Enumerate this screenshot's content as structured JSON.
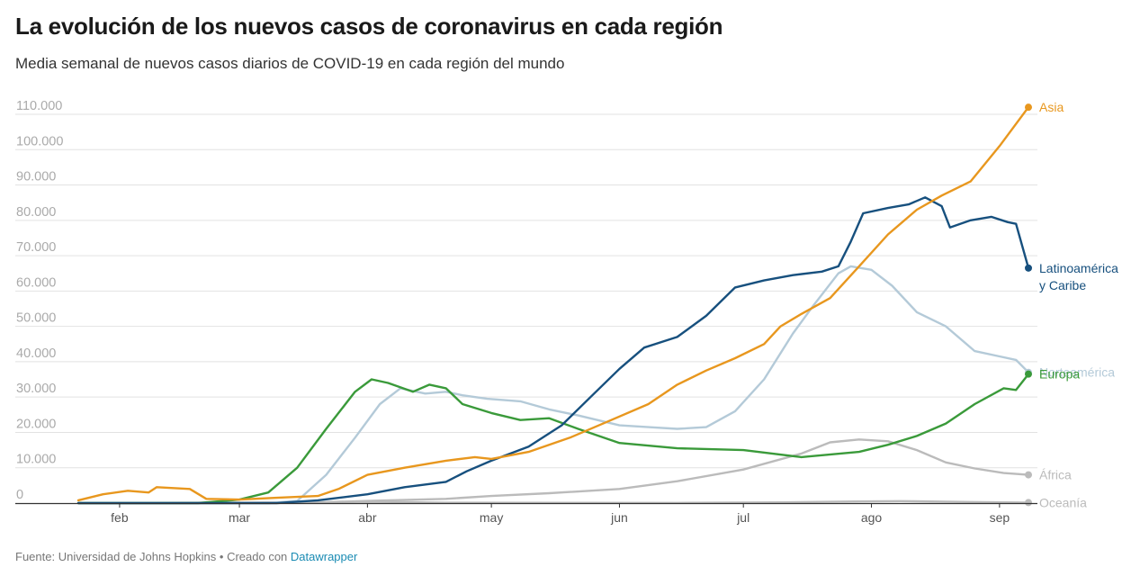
{
  "title": "La evolución de los nuevos casos de coronavirus en cada región",
  "subtitle": "Media semanal de nuevos casos diarios de COVID-19 en cada región del mundo",
  "footer": {
    "source": "Fuente: Universidad de Johns Hopkins • Creado con ",
    "tool": "Datawrapper"
  },
  "chart_data": {
    "type": "line",
    "title": "La evolución de los nuevos casos de coronavirus en cada región",
    "subtitle": "Media semanal de nuevos casos diarios de COVID-19 en cada región del mundo",
    "x_type": "date",
    "x_range": [
      "2020-01-22",
      "2020-09-08"
    ],
    "x_ticks": [
      {
        "date": "2020-02-01",
        "label": "feb"
      },
      {
        "date": "2020-03-01",
        "label": "mar"
      },
      {
        "date": "2020-04-01",
        "label": "abr"
      },
      {
        "date": "2020-05-01",
        "label": "may"
      },
      {
        "date": "2020-06-01",
        "label": "jun"
      },
      {
        "date": "2020-07-01",
        "label": "jul"
      },
      {
        "date": "2020-08-01",
        "label": "ago"
      },
      {
        "date": "2020-09-01",
        "label": "sep"
      }
    ],
    "ylim": [
      0,
      110000
    ],
    "y_ticks": [
      {
        "value": 0,
        "label": "0"
      },
      {
        "value": 10000,
        "label": "10.000"
      },
      {
        "value": 20000,
        "label": "20.000"
      },
      {
        "value": 30000,
        "label": "30.000"
      },
      {
        "value": 40000,
        "label": "40.000"
      },
      {
        "value": 50000,
        "label": "50.000"
      },
      {
        "value": 60000,
        "label": "60.000"
      },
      {
        "value": 70000,
        "label": "70.000"
      },
      {
        "value": 80000,
        "label": "80.000"
      },
      {
        "value": 90000,
        "label": "90.000"
      },
      {
        "value": 100000,
        "label": "100.000"
      },
      {
        "value": 110000,
        "label": "110.000"
      }
    ],
    "grid": "horizontal",
    "legend": "direct labels at line ends",
    "series": [
      {
        "name": "Oceanía",
        "label_lines": [
          "Oceanía"
        ],
        "color": "#bbbbbb",
        "points": [
          [
            "2020-01-22",
            0
          ],
          [
            "2020-03-15",
            100
          ],
          [
            "2020-04-01",
            400
          ],
          [
            "2020-04-20",
            100
          ],
          [
            "2020-06-15",
            50
          ],
          [
            "2020-07-10",
            200
          ],
          [
            "2020-07-28",
            450
          ],
          [
            "2020-08-08",
            550
          ],
          [
            "2020-08-25",
            300
          ],
          [
            "2020-09-08",
            150
          ]
        ]
      },
      {
        "name": "África",
        "label_lines": [
          "África"
        ],
        "color": "#bbbbbb",
        "points": [
          [
            "2020-01-22",
            0
          ],
          [
            "2020-03-20",
            200
          ],
          [
            "2020-04-01",
            600
          ],
          [
            "2020-04-20",
            1200
          ],
          [
            "2020-05-01",
            2000
          ],
          [
            "2020-05-15",
            2800
          ],
          [
            "2020-06-01",
            4000
          ],
          [
            "2020-06-15",
            6200
          ],
          [
            "2020-07-01",
            9500
          ],
          [
            "2020-07-15",
            14000
          ],
          [
            "2020-07-22",
            17200
          ],
          [
            "2020-07-29",
            18000
          ],
          [
            "2020-08-05",
            17500
          ],
          [
            "2020-08-12",
            15000
          ],
          [
            "2020-08-19",
            11500
          ],
          [
            "2020-08-26",
            9800
          ],
          [
            "2020-09-02",
            8500
          ],
          [
            "2020-09-08",
            8000
          ]
        ]
      },
      {
        "name": "Norteamérica",
        "label_lines": [
          "Norteamérica"
        ],
        "color": "#b4cad8",
        "points": [
          [
            "2020-01-22",
            0
          ],
          [
            "2020-03-08",
            0
          ],
          [
            "2020-03-15",
            600
          ],
          [
            "2020-03-22",
            8000
          ],
          [
            "2020-03-29",
            18500
          ],
          [
            "2020-04-04",
            28000
          ],
          [
            "2020-04-09",
            32500
          ],
          [
            "2020-04-15",
            31000
          ],
          [
            "2020-04-20",
            31500
          ],
          [
            "2020-04-24",
            30500
          ],
          [
            "2020-04-30",
            29500
          ],
          [
            "2020-05-08",
            28800
          ],
          [
            "2020-05-15",
            26500
          ],
          [
            "2020-05-22",
            24800
          ],
          [
            "2020-06-01",
            22000
          ],
          [
            "2020-06-08",
            21500
          ],
          [
            "2020-06-15",
            21000
          ],
          [
            "2020-06-22",
            21500
          ],
          [
            "2020-06-29",
            26000
          ],
          [
            "2020-07-06",
            35000
          ],
          [
            "2020-07-13",
            48000
          ],
          [
            "2020-07-18",
            56000
          ],
          [
            "2020-07-24",
            65000
          ],
          [
            "2020-07-27",
            67000
          ],
          [
            "2020-08-01",
            66000
          ],
          [
            "2020-08-06",
            61500
          ],
          [
            "2020-08-12",
            54000
          ],
          [
            "2020-08-19",
            50000
          ],
          [
            "2020-08-26",
            43000
          ],
          [
            "2020-09-01",
            41500
          ],
          [
            "2020-09-05",
            40500
          ],
          [
            "2020-09-08",
            37000
          ]
        ]
      },
      {
        "name": "Europa",
        "label_lines": [
          "Europa"
        ],
        "color": "#3a9a3a",
        "points": [
          [
            "2020-01-22",
            0
          ],
          [
            "2020-02-20",
            0
          ],
          [
            "2020-03-01",
            1000
          ],
          [
            "2020-03-08",
            3000
          ],
          [
            "2020-03-15",
            10000
          ],
          [
            "2020-03-22",
            21000
          ],
          [
            "2020-03-29",
            31500
          ],
          [
            "2020-04-02",
            35000
          ],
          [
            "2020-04-06",
            34000
          ],
          [
            "2020-04-12",
            31500
          ],
          [
            "2020-04-16",
            33500
          ],
          [
            "2020-04-20",
            32500
          ],
          [
            "2020-04-24",
            28000
          ],
          [
            "2020-05-01",
            25500
          ],
          [
            "2020-05-08",
            23500
          ],
          [
            "2020-05-15",
            24000
          ],
          [
            "2020-05-22",
            21000
          ],
          [
            "2020-06-01",
            17000
          ],
          [
            "2020-06-15",
            15500
          ],
          [
            "2020-07-01",
            15000
          ],
          [
            "2020-07-15",
            13000
          ],
          [
            "2020-07-29",
            14500
          ],
          [
            "2020-08-05",
            16500
          ],
          [
            "2020-08-12",
            19000
          ],
          [
            "2020-08-19",
            22500
          ],
          [
            "2020-08-26",
            28000
          ],
          [
            "2020-09-02",
            32500
          ],
          [
            "2020-09-05",
            32000
          ],
          [
            "2020-09-08",
            36500
          ]
        ]
      },
      {
        "name": "Latinoamérica y Caribe",
        "label_lines": [
          "Latinoamérica",
          "y Caribe"
        ],
        "color": "#17507e",
        "points": [
          [
            "2020-01-22",
            0
          ],
          [
            "2020-03-10",
            0
          ],
          [
            "2020-03-20",
            800
          ],
          [
            "2020-04-01",
            2500
          ],
          [
            "2020-04-10",
            4500
          ],
          [
            "2020-04-20",
            6000
          ],
          [
            "2020-04-25",
            9000
          ],
          [
            "2020-05-01",
            12000
          ],
          [
            "2020-05-10",
            16000
          ],
          [
            "2020-05-18",
            22000
          ],
          [
            "2020-05-25",
            30000
          ],
          [
            "2020-06-01",
            38000
          ],
          [
            "2020-06-07",
            44000
          ],
          [
            "2020-06-15",
            47000
          ],
          [
            "2020-06-22",
            53000
          ],
          [
            "2020-06-29",
            61000
          ],
          [
            "2020-07-06",
            63000
          ],
          [
            "2020-07-13",
            64500
          ],
          [
            "2020-07-20",
            65500
          ],
          [
            "2020-07-24",
            67000
          ],
          [
            "2020-07-27",
            74000
          ],
          [
            "2020-07-30",
            82000
          ],
          [
            "2020-08-05",
            83500
          ],
          [
            "2020-08-10",
            84500
          ],
          [
            "2020-08-14",
            86500
          ],
          [
            "2020-08-18",
            84000
          ],
          [
            "2020-08-20",
            78000
          ],
          [
            "2020-08-25",
            80000
          ],
          [
            "2020-08-30",
            81000
          ],
          [
            "2020-09-03",
            79500
          ],
          [
            "2020-09-05",
            79000
          ],
          [
            "2020-09-08",
            66500
          ]
        ]
      },
      {
        "name": "Asia",
        "label_lines": [
          "Asia"
        ],
        "color": "#e8971e",
        "points": [
          [
            "2020-01-22",
            800
          ],
          [
            "2020-01-28",
            2500
          ],
          [
            "2020-02-03",
            3500
          ],
          [
            "2020-02-08",
            3000
          ],
          [
            "2020-02-10",
            4500
          ],
          [
            "2020-02-18",
            4000
          ],
          [
            "2020-02-22",
            1200
          ],
          [
            "2020-03-01",
            1000
          ],
          [
            "2020-03-10",
            1500
          ],
          [
            "2020-03-20",
            2000
          ],
          [
            "2020-03-25",
            4000
          ],
          [
            "2020-04-01",
            8000
          ],
          [
            "2020-04-10",
            10000
          ],
          [
            "2020-04-20",
            12000
          ],
          [
            "2020-04-27",
            13000
          ],
          [
            "2020-05-01",
            12500
          ],
          [
            "2020-05-10",
            14500
          ],
          [
            "2020-05-20",
            18500
          ],
          [
            "2020-05-29",
            23000
          ],
          [
            "2020-06-08",
            28000
          ],
          [
            "2020-06-15",
            33500
          ],
          [
            "2020-06-22",
            37500
          ],
          [
            "2020-06-29",
            41000
          ],
          [
            "2020-07-06",
            45000
          ],
          [
            "2020-07-10",
            50000
          ],
          [
            "2020-07-15",
            53500
          ],
          [
            "2020-07-22",
            58000
          ],
          [
            "2020-07-29",
            67000
          ],
          [
            "2020-08-05",
            76000
          ],
          [
            "2020-08-12",
            83000
          ],
          [
            "2020-08-18",
            87000
          ],
          [
            "2020-08-25",
            91000
          ],
          [
            "2020-09-01",
            101000
          ],
          [
            "2020-09-08",
            112000
          ]
        ]
      }
    ]
  }
}
